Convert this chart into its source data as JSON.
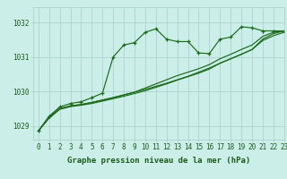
{
  "title": "Graphe pression niveau de la mer (hPa)",
  "xlim": [
    -0.5,
    23
  ],
  "ylim": [
    1028.6,
    1032.45
  ],
  "yticks": [
    1029,
    1030,
    1031,
    1032
  ],
  "xticks": [
    0,
    1,
    2,
    3,
    4,
    5,
    6,
    7,
    8,
    9,
    10,
    11,
    12,
    13,
    14,
    15,
    16,
    17,
    18,
    19,
    20,
    21,
    22,
    23
  ],
  "background_color": "#cceee8",
  "grid_color": "#aad4cc",
  "line_color": "#1a6b1a",
  "series": [
    [
      1028.85,
      1029.28,
      1029.55,
      1029.65,
      1029.7,
      1029.82,
      1029.95,
      1031.0,
      1031.35,
      1031.42,
      1031.72,
      1031.82,
      1031.52,
      1031.45,
      1031.45,
      1031.12,
      1031.1,
      1031.52,
      1031.58,
      1031.88,
      1031.85,
      1031.76,
      1031.76,
      1031.76
    ],
    [
      1028.85,
      1029.25,
      1029.5,
      1029.58,
      1029.62,
      1029.68,
      1029.75,
      1029.82,
      1029.9,
      1029.98,
      1030.06,
      1030.15,
      1030.24,
      1030.34,
      1030.44,
      1030.56,
      1030.68,
      1030.82,
      1030.95,
      1031.08,
      1031.22,
      1031.52,
      1031.68,
      1031.76
    ],
    [
      1028.85,
      1029.25,
      1029.5,
      1029.58,
      1029.62,
      1029.68,
      1029.75,
      1029.82,
      1029.9,
      1029.98,
      1030.1,
      1030.22,
      1030.34,
      1030.46,
      1030.56,
      1030.66,
      1030.78,
      1030.95,
      1031.08,
      1031.22,
      1031.35,
      1031.6,
      1031.72,
      1031.76
    ],
    [
      1028.85,
      1029.22,
      1029.48,
      1029.56,
      1029.6,
      1029.65,
      1029.72,
      1029.79,
      1029.86,
      1029.94,
      1030.02,
      1030.12,
      1030.22,
      1030.33,
      1030.43,
      1030.53,
      1030.65,
      1030.82,
      1030.95,
      1031.08,
      1031.22,
      1031.48,
      1031.62,
      1031.72
    ]
  ],
  "marker": "+",
  "marker_size": 3.5,
  "marker_lw": 0.9,
  "font_color": "#1a5c1a",
  "title_font_size": 6.5,
  "tick_font_size": 5.5,
  "line_width": 0.85
}
